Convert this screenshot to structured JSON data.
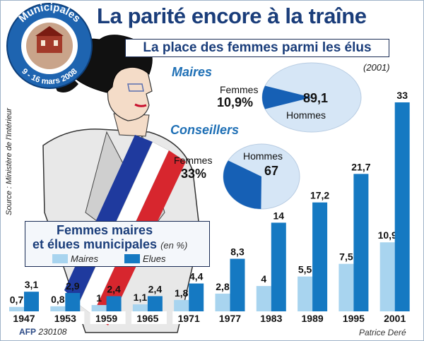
{
  "title": "La parité encore à la traîne",
  "subtitle": "La place des femmes parmi les élus",
  "year_note": "(2001)",
  "badge": {
    "top_text": "Municipales",
    "bottom_text": "9 - 16 mars 2008"
  },
  "source": "Source : Ministère de l'Intérieur",
  "credit": {
    "agency": "AFP",
    "code": "230108",
    "author": "Patrice Deré"
  },
  "pies": {
    "maires": {
      "heading": "Maires",
      "femmes_label": "Femmes",
      "femmes_value": "10,9%",
      "hommes_label": "Hommes",
      "hommes_value": "89,1",
      "femmes_pct": 10.9
    },
    "conseillers": {
      "heading": "Conseillers",
      "femmes_label": "Femmes",
      "femmes_value": "33%",
      "hommes_label": "Hommes",
      "hommes_value": "67",
      "femmes_pct": 33
    }
  },
  "legend": {
    "line1": "Femmes maires",
    "line2": "et élues municipales",
    "unit": "(en %)",
    "maires": "Maires",
    "elues": "Elues"
  },
  "colors": {
    "title": "#1a3d7a",
    "maires": "#a8d4ef",
    "elues": "#1579c2",
    "pie_fill": "#d6e6f6",
    "pie_slice": "#1660b5"
  },
  "chart_data": {
    "type": "bar",
    "categories": [
      "1947",
      "1953",
      "1959",
      "1965",
      "1971",
      "1977",
      "1983",
      "1989",
      "1995",
      "2001"
    ],
    "series": [
      {
        "name": "Maires",
        "values": [
          0.7,
          0.8,
          1,
          1.1,
          1.8,
          2.8,
          4,
          5.5,
          7.5,
          10.9
        ],
        "labels": [
          "0,7",
          "0,8",
          "1",
          "1,1",
          "1,8",
          "2,8",
          "4",
          "5,5",
          "7,5",
          "10,9"
        ]
      },
      {
        "name": "Elues",
        "values": [
          3.1,
          2.9,
          2.4,
          2.4,
          4.4,
          8.3,
          14,
          17.2,
          21.7,
          33
        ],
        "labels": [
          "3,1",
          "2,9",
          "2,4",
          "2,4",
          "4,4",
          "8,3",
          "14",
          "17,2",
          "21,7",
          "33"
        ]
      }
    ],
    "title": "Femmes maires et élues municipales",
    "unit": "(en %)",
    "ylim": [
      0,
      33
    ],
    "legend": "inside-box-left"
  }
}
